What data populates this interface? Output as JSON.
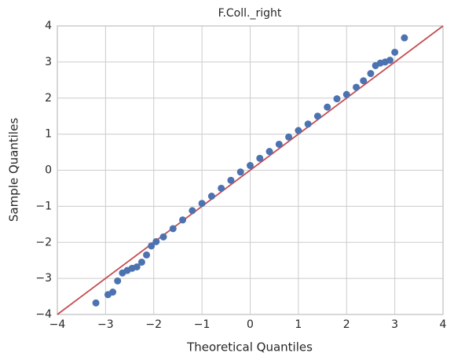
{
  "chart_data": {
    "type": "scatter",
    "title": "F.Coll._right",
    "xlabel": "Theoretical Quantiles",
    "ylabel": "Sample Quantiles",
    "series": [
      {
        "color": "#4c72b0",
        "x": [
          -3.2,
          -2.95,
          -2.85,
          -2.75,
          -2.65,
          -2.55,
          -2.45,
          -2.35,
          -2.25,
          -2.15,
          -2.05,
          -1.95,
          -1.8,
          -1.6,
          -1.4,
          -1.2,
          -1.0,
          -0.8,
          -0.6,
          -0.4,
          -0.2,
          0,
          0.2,
          0.4,
          0.6,
          0.8,
          1.0,
          1.2,
          1.4,
          1.6,
          1.8,
          2.0,
          2.2,
          2.35,
          2.5,
          2.6,
          2.7,
          2.8,
          2.9,
          3.0,
          3.2
        ],
        "values": [
          -3.68,
          -3.45,
          -3.38,
          -3.07,
          -2.85,
          -2.78,
          -2.72,
          -2.68,
          -2.55,
          -2.35,
          -2.1,
          -1.98,
          -1.85,
          -1.62,
          -1.38,
          -1.12,
          -0.92,
          -0.72,
          -0.5,
          -0.28,
          -0.05,
          0.13,
          0.33,
          0.52,
          0.72,
          0.92,
          1.1,
          1.28,
          1.5,
          1.75,
          1.98,
          2.1,
          2.3,
          2.48,
          2.68,
          2.9,
          2.97,
          3.0,
          3.05,
          3.27,
          3.67
        ]
      }
    ],
    "reference_line": {
      "color": "#c44e52",
      "x": [
        -4,
        4
      ],
      "y": [
        -4,
        4
      ]
    },
    "xlim": [
      -4,
      4
    ],
    "ylim": [
      -4,
      4
    ],
    "xticks": [
      {
        "value": -4,
        "label": "−4"
      },
      {
        "value": -3,
        "label": "−3"
      },
      {
        "value": -2,
        "label": "−2"
      },
      {
        "value": -1,
        "label": "−1"
      },
      0,
      1,
      2,
      3,
      4
    ],
    "yticks": [
      {
        "value": -4,
        "label": "−4"
      },
      {
        "value": -3,
        "label": "−3"
      },
      {
        "value": -2,
        "label": "−2"
      },
      {
        "value": -1,
        "label": "−1"
      },
      0,
      1,
      2,
      3,
      4
    ],
    "grid": true
  }
}
